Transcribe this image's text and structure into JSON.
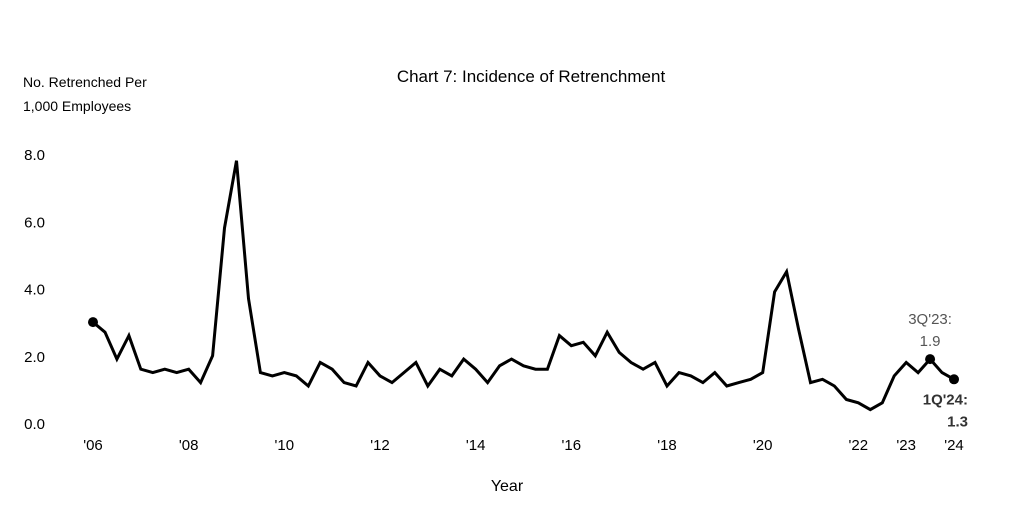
{
  "chart_data": {
    "type": "line",
    "title": "Chart 7: Incidence of Retrenchment",
    "ylabel_lines": [
      "No. Retrenched Per",
      "1,000 Employees"
    ],
    "xlabel": "Year",
    "ylim": [
      0,
      8
    ],
    "yticks": [
      "0.0",
      "2.0",
      "4.0",
      "6.0",
      "8.0"
    ],
    "xtick_labels": [
      "'06",
      "'08",
      "'10",
      "'12",
      "'14",
      "'16",
      "'18",
      "'20",
      "'22",
      "'23",
      "'24"
    ],
    "grid": false,
    "legend": "none",
    "line_color": "#000000",
    "series": [
      {
        "x": [
          "1Q'06",
          "2Q'06",
          "3Q'06",
          "4Q'06",
          "1Q'07",
          "2Q'07",
          "3Q'07",
          "4Q'07",
          "1Q'08",
          "2Q'08",
          "3Q'08",
          "4Q'08",
          "1Q'09",
          "2Q'09",
          "3Q'09",
          "4Q'09",
          "1Q'10",
          "2Q'10",
          "3Q'10",
          "4Q'10",
          "1Q'11",
          "2Q'11",
          "3Q'11",
          "4Q'11",
          "1Q'12",
          "2Q'12",
          "3Q'12",
          "4Q'12",
          "1Q'13",
          "2Q'13",
          "3Q'13",
          "4Q'13",
          "1Q'14",
          "2Q'14",
          "3Q'14",
          "4Q'14",
          "1Q'15",
          "2Q'15",
          "3Q'15",
          "4Q'15",
          "1Q'16",
          "2Q'16",
          "3Q'16",
          "4Q'16",
          "1Q'17",
          "2Q'17",
          "3Q'17",
          "4Q'17",
          "1Q'18",
          "2Q'18",
          "3Q'18",
          "4Q'18",
          "1Q'19",
          "2Q'19",
          "3Q'19",
          "4Q'19",
          "1Q'20",
          "2Q'20",
          "3Q'20",
          "4Q'20",
          "1Q'21",
          "2Q'21",
          "3Q'21",
          "4Q'21",
          "1Q'22",
          "2Q'22",
          "3Q'22",
          "4Q'22",
          "1Q'23",
          "2Q'23",
          "3Q'23",
          "4Q'23",
          "1Q'24"
        ],
        "values": [
          3.0,
          2.7,
          1.9,
          2.6,
          1.6,
          1.5,
          1.6,
          1.5,
          1.6,
          1.2,
          2.0,
          5.8,
          7.8,
          3.7,
          1.5,
          1.4,
          1.5,
          1.4,
          1.1,
          1.8,
          1.6,
          1.2,
          1.1,
          1.8,
          1.4,
          1.2,
          1.5,
          1.8,
          1.1,
          1.6,
          1.4,
          1.9,
          1.6,
          1.2,
          1.7,
          1.9,
          1.7,
          1.6,
          1.6,
          2.6,
          2.3,
          2.4,
          2.0,
          2.7,
          2.1,
          1.8,
          1.6,
          1.8,
          1.1,
          1.5,
          1.4,
          1.2,
          1.5,
          1.1,
          1.2,
          1.3,
          1.5,
          3.9,
          4.5,
          2.8,
          1.2,
          1.3,
          1.1,
          0.7,
          0.6,
          0.4,
          0.6,
          1.4,
          1.8,
          1.5,
          1.9,
          1.5,
          1.3
        ]
      }
    ],
    "annotations": [
      {
        "label_lines": [
          "3Q'23:",
          "1.9"
        ],
        "point": "3Q'23",
        "style": "gray"
      },
      {
        "label_lines": [
          "1Q'24:",
          "1.3"
        ],
        "point": "1Q'24",
        "style": "bold"
      }
    ],
    "markers": [
      "1Q'06",
      "3Q'23",
      "1Q'24"
    ]
  }
}
